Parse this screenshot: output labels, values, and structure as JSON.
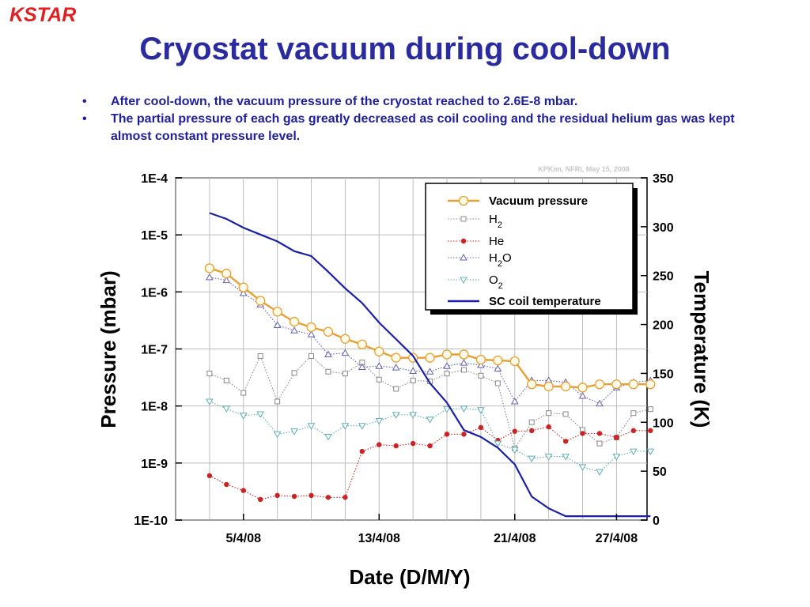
{
  "logo": {
    "text": "KSTAR",
    "color": "#e02020"
  },
  "slide": {
    "title": "Cryostat vacuum during cool-down",
    "bullets": [
      "After cool-down, the vacuum pressure of the cryostat reached to 2.6E-8 mbar.",
      "The partial pressure of each gas greatly decreased as coil cooling and the residual helium gas was kept almost constant pressure level."
    ]
  },
  "chart_data": {
    "type": "line",
    "watermark": "KPKim, NFRI, May 15, 2008",
    "xlabel": "Date (D/M/Y)",
    "ylabel_left": "Pressure (mbar)",
    "ylabel_right": "Temperature (K)",
    "x_unit": "day",
    "x_range": [
      1,
      28.8
    ],
    "x_ticks": [
      {
        "x": 5,
        "label": "5/4/08"
      },
      {
        "x": 13,
        "label": "13/4/08"
      },
      {
        "x": 21,
        "label": "21/4/08"
      },
      {
        "x": 27,
        "label": "27/4/08"
      }
    ],
    "x_grid_step": 2,
    "y_left_scale": "log",
    "y_left_range": [
      1e-10,
      0.0001
    ],
    "y_left_ticks": [
      {
        "v": 0.0001,
        "label": "1E-4"
      },
      {
        "v": 1e-05,
        "label": "1E-5"
      },
      {
        "v": 1e-06,
        "label": "1E-6"
      },
      {
        "v": 1e-07,
        "label": "1E-7"
      },
      {
        "v": 1e-08,
        "label": "1E-8"
      },
      {
        "v": 1e-09,
        "label": "1E-9"
      },
      {
        "v": 1e-10,
        "label": "1E-10"
      }
    ],
    "y_right_range": [
      0,
      350
    ],
    "y_right_ticks": [
      0,
      50,
      100,
      150,
      200,
      250,
      300,
      350
    ],
    "grid": true,
    "legend_position": "top-right",
    "series": [
      {
        "name": "Vacuum pressure",
        "axis": "left",
        "color": "#e8a030",
        "style": "solid",
        "marker": "circle-open",
        "x": [
          3,
          4,
          5,
          6,
          7,
          8,
          9,
          10,
          11,
          12,
          13,
          14,
          15,
          16,
          17,
          18,
          19,
          20,
          21,
          22,
          23,
          24,
          25,
          26,
          27,
          28,
          29
        ],
        "y": [
          2.6e-06,
          2.1e-06,
          1.2e-06,
          7e-07,
          4.5e-07,
          3e-07,
          2.4e-07,
          2e-07,
          1.5e-07,
          1.2e-07,
          9e-08,
          7e-08,
          7e-08,
          7e-08,
          8e-08,
          8e-08,
          6.5e-08,
          6.3e-08,
          6.1e-08,
          2.4e-08,
          2.2e-08,
          2.2e-08,
          2.1e-08,
          2.4e-08,
          2.4e-08,
          2.4e-08,
          2.4e-08
        ]
      },
      {
        "name": "H2",
        "axis": "left",
        "color": "#888888",
        "style": "dotted",
        "marker": "square-open",
        "x": [
          3,
          4,
          5,
          6,
          7,
          8,
          9,
          10,
          11,
          12,
          13,
          14,
          15,
          16,
          17,
          18,
          19,
          20,
          21,
          22,
          23,
          24,
          25,
          26,
          27,
          28,
          29
        ],
        "y": [
          3.7e-08,
          2.8e-08,
          1.7e-08,
          7.5e-08,
          1.2e-08,
          3.8e-08,
          7.5e-08,
          4e-08,
          3.7e-08,
          5.8e-08,
          2.9e-08,
          2e-08,
          2.8e-08,
          2.7e-08,
          3.7e-08,
          4.3e-08,
          3.4e-08,
          2.5e-08,
          1.8e-09,
          5.2e-09,
          7.5e-09,
          7.2e-09,
          3.8e-09,
          2.2e-09,
          2.8e-09,
          7.5e-09,
          8.8e-09
        ]
      },
      {
        "name": "He",
        "axis": "left",
        "color": "#cc2222",
        "style": "dotted",
        "marker": "circle-filled",
        "x": [
          3,
          4,
          5,
          6,
          7,
          8,
          9,
          10,
          11,
          12,
          13,
          14,
          15,
          16,
          17,
          18,
          19,
          20,
          21,
          22,
          23,
          24,
          25,
          26,
          27,
          28,
          29
        ],
        "y": [
          6e-10,
          4.2e-10,
          3.3e-10,
          2.3e-10,
          2.7e-10,
          2.6e-10,
          2.7e-10,
          2.5e-10,
          2.5e-10,
          1.6e-09,
          2.1e-09,
          2e-09,
          2.2e-09,
          2e-09,
          3.2e-09,
          3.2e-09,
          4.2e-09,
          2.5e-09,
          3.6e-09,
          3.7e-09,
          4.3e-09,
          2.4e-09,
          3.3e-09,
          3.3e-09,
          2.8e-09,
          3.7e-09,
          3.7e-09
        ]
      },
      {
        "name": "H2O",
        "axis": "left",
        "color": "#6060b0",
        "style": "dotted",
        "marker": "triangle-up-open",
        "x": [
          3,
          4,
          5,
          6,
          7,
          8,
          9,
          10,
          11,
          12,
          13,
          14,
          15,
          16,
          17,
          18,
          19,
          20,
          21,
          22,
          23,
          24,
          25,
          26,
          27,
          28,
          29
        ],
        "y": [
          1.8e-06,
          1.6e-06,
          9.5e-07,
          6e-07,
          2.6e-07,
          2.1e-07,
          1.8e-07,
          8e-08,
          8.5e-08,
          4.8e-08,
          5e-08,
          4.7e-08,
          4.1e-08,
          4e-08,
          5e-08,
          5.7e-08,
          5.2e-08,
          4.5e-08,
          1.2e-08,
          2.8e-08,
          2.8e-08,
          2.6e-08,
          1.5e-08,
          1.1e-08,
          2.1e-08,
          2.6e-08,
          2.8e-08
        ]
      },
      {
        "name": "O2",
        "axis": "left",
        "color": "#60b0b0",
        "style": "dotted",
        "marker": "triangle-down-open",
        "x": [
          3,
          4,
          5,
          6,
          7,
          8,
          9,
          10,
          11,
          12,
          13,
          14,
          15,
          16,
          17,
          18,
          19,
          20,
          21,
          22,
          23,
          24,
          25,
          26,
          27,
          28,
          29
        ],
        "y": [
          1.2e-08,
          9e-09,
          6.8e-09,
          7.2e-09,
          3.2e-09,
          3.6e-09,
          4.5e-09,
          2.9e-09,
          4.5e-09,
          4.5e-09,
          5.5e-09,
          7e-09,
          7e-09,
          5.8e-09,
          8.8e-09,
          9e-09,
          8.5e-09,
          2.2e-09,
          1.7e-09,
          1.2e-09,
          1.3e-09,
          1.3e-09,
          8.5e-10,
          7e-10,
          1.3e-09,
          1.6e-09,
          1.6e-09
        ]
      },
      {
        "name": "SC coil temperature",
        "axis": "right",
        "color": "#1a20a8",
        "style": "solid",
        "marker": "none",
        "x": [
          3,
          4,
          5,
          6,
          7,
          8,
          9,
          10,
          11,
          12,
          13,
          14,
          15,
          16,
          17,
          18,
          19,
          20,
          21,
          22,
          23,
          24,
          25,
          26,
          27,
          28,
          29
        ],
        "y": [
          314,
          308,
          299,
          292,
          285,
          275,
          270,
          254,
          237,
          222,
          202,
          185,
          168,
          140,
          120,
          92,
          85,
          74,
          57,
          24,
          12,
          4,
          4,
          4,
          4,
          4,
          4
        ]
      }
    ]
  }
}
